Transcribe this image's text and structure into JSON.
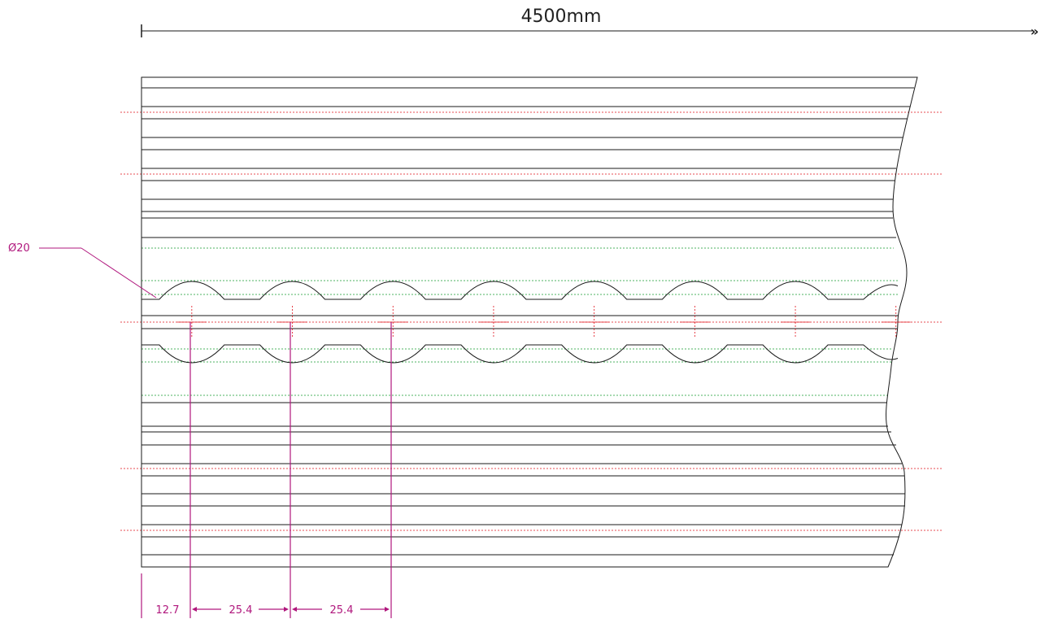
{
  "colors": {
    "outline": "#1a1a1a",
    "dimension": "#b0177d",
    "centerline": "#e0101a",
    "hidden": "#129a2e"
  },
  "overall_length": "4500mm",
  "hole_callout": "Ø20",
  "dimensions": {
    "first_offset": "12.7",
    "pitch_1": "25.4",
    "pitch_2": "25.4"
  },
  "holes": {
    "count": 8,
    "diameter": 20,
    "pitch": 25.4,
    "first_offset": 12.7
  },
  "icons": {
    "arrow_end": "double-chevron-right-icon"
  }
}
